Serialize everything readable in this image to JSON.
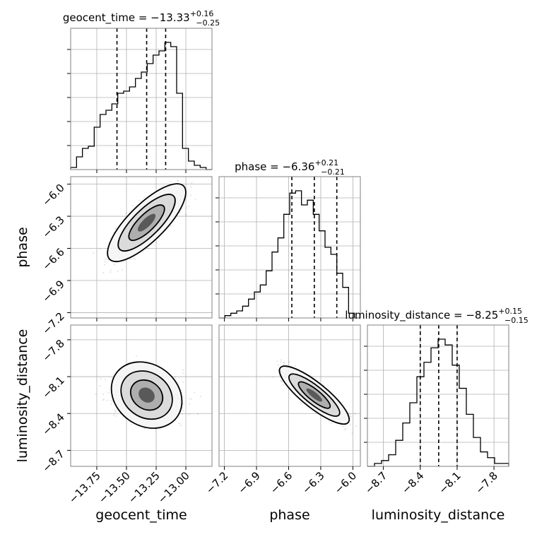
{
  "chart_data": {
    "type": "corner",
    "parameters": [
      {
        "name": "geocent_time",
        "xlabel": "geocent_time",
        "ticks": [
          "−13.75",
          "−13.50",
          "−13.25",
          "−13.00"
        ],
        "tick_values": [
          -13.75,
          -13.5,
          -13.25,
          -13.0
        ],
        "range": [
          -13.97,
          -12.78
        ],
        "title": {
          "prefix": "geocent_time = ",
          "median": "−13.33",
          "upper": "+0.16",
          "lower": "−0.25"
        },
        "quantiles": [
          -13.58,
          -13.33,
          -13.17
        ],
        "hist": {
          "edges_start": -13.97,
          "edges_end": -12.78,
          "counts": [
            1,
            6,
            10,
            11,
            20,
            26,
            28,
            31,
            36,
            37,
            39,
            43,
            46,
            50,
            54,
            56,
            60,
            58,
            36,
            10,
            4,
            2,
            1,
            0
          ]
        }
      },
      {
        "name": "phase",
        "ylabel": "phase",
        "xlabel": "phase",
        "ticks": [
          "−7.2",
          "−6.9",
          "−6.6",
          "−6.3",
          "−6.0"
        ],
        "tick_values": [
          -7.2,
          -6.9,
          -6.6,
          -6.3,
          -6.0
        ],
        "range": [
          -7.25,
          -5.93
        ],
        "title": {
          "prefix": "phase = ",
          "median": "−6.36",
          "upper": "+0.21",
          "lower": "−0.21"
        },
        "quantiles": [
          -6.57,
          -6.36,
          -6.15
        ],
        "hist": {
          "edges_start": -7.25,
          "edges_end": -5.93,
          "counts": [
            0,
            1,
            2,
            3,
            5,
            8,
            11,
            14,
            20,
            28,
            34,
            44,
            53,
            54,
            48,
            50,
            44,
            37,
            30,
            27,
            19,
            13,
            2,
            0
          ]
        }
      },
      {
        "name": "luminosity_distance",
        "ylabel": "luminosity_distance",
        "xlabel": "luminosity_distance",
        "ticks": [
          "−8.7",
          "−8.4",
          "−8.1",
          "−7.8"
        ],
        "tick_values": [
          -8.7,
          -8.4,
          -8.1,
          -7.8
        ],
        "range": [
          -8.83,
          -7.68
        ],
        "title": {
          "prefix": "luminosity_distance = ",
          "median": "−8.25",
          "upper": "+0.15",
          "lower": "−0.15"
        },
        "quantiles": [
          -8.4,
          -8.25,
          -8.1
        ],
        "hist": {
          "edges_start": -8.83,
          "edges_end": -7.68,
          "counts": [
            0,
            1,
            2,
            4,
            9,
            15,
            22,
            31,
            36,
            41,
            44,
            42,
            35,
            27,
            18,
            10,
            5,
            3,
            1,
            1
          ]
        }
      }
    ],
    "pairs": [
      {
        "x": "geocent_time",
        "y": "phase"
      },
      {
        "x": "geocent_time",
        "y": "luminosity_distance"
      },
      {
        "x": "phase",
        "y": "luminosity_distance"
      }
    ],
    "grid": true
  }
}
